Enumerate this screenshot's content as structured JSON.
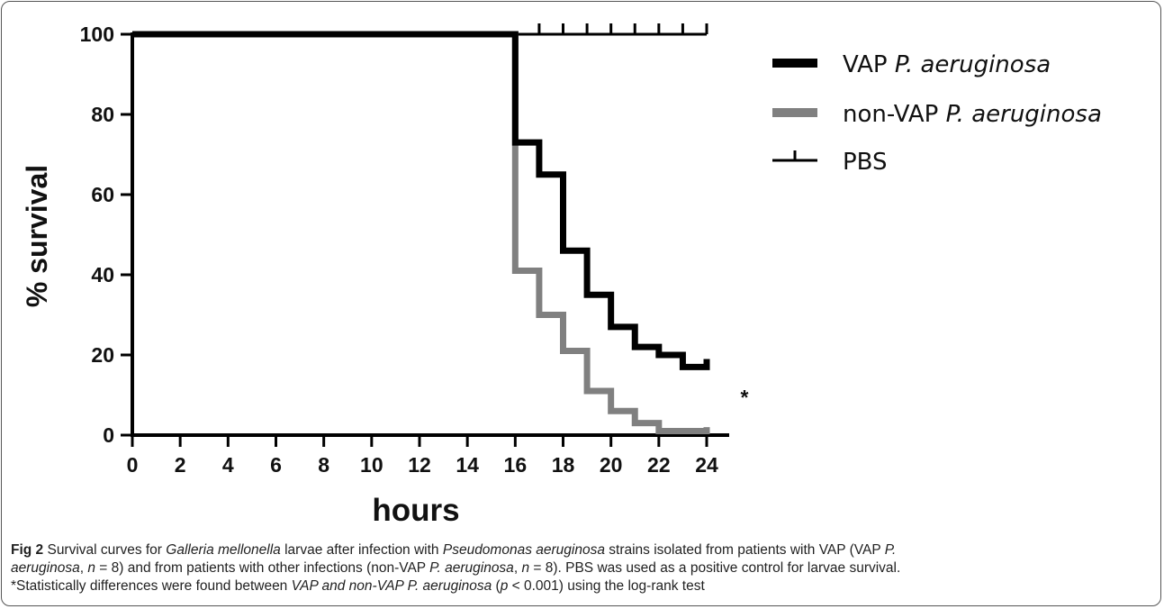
{
  "chart_data": {
    "type": "line",
    "step": true,
    "title": "",
    "xlabel": "hours",
    "ylabel": "% survival",
    "xlim": [
      0,
      24
    ],
    "ylim": [
      0,
      100
    ],
    "xticks": [
      "0",
      "2",
      "4",
      "6",
      "8",
      "10",
      "12",
      "14",
      "16",
      "18",
      "20",
      "22",
      "24"
    ],
    "yticks": [
      "0",
      "20",
      "40",
      "60",
      "80",
      "100"
    ],
    "legend_position": "top-right",
    "significance_marker": "*",
    "series": [
      {
        "name_prefix": "VAP ",
        "name_italic": "P. aeruginosa",
        "color": "#000000",
        "x": [
          0,
          16,
          17,
          18,
          19,
          20,
          21,
          22,
          23,
          24
        ],
        "y": [
          100,
          73,
          65,
          46,
          35,
          27,
          22,
          20,
          17,
          19
        ]
      },
      {
        "name_prefix": "non-VAP ",
        "name_italic": "P. aeruginosa",
        "color": "#808080",
        "x": [
          0,
          16,
          17,
          18,
          19,
          20,
          21,
          22,
          23,
          24
        ],
        "y": [
          100,
          41,
          30,
          21,
          11,
          6,
          3,
          1,
          1,
          2
        ]
      },
      {
        "name_prefix": "PBS",
        "name_italic": "",
        "color": "#000000",
        "censored_marks": true,
        "x": [
          0,
          24
        ],
        "y": [
          100,
          100
        ]
      }
    ]
  },
  "caption": {
    "fig_label": "Fig 2",
    "line1": [
      {
        "t": " Survival curves for "
      },
      {
        "t": "Galleria mellonella",
        "i": true
      },
      {
        "t": " larvae after infection with "
      },
      {
        "t": "Pseudomonas aeruginosa",
        "i": true
      },
      {
        "t": " strains isolated from patients with VAP (VAP "
      },
      {
        "t": "P.",
        "i": true
      }
    ],
    "line2": [
      {
        "t": "aeruginosa",
        "i": true
      },
      {
        "t": ", "
      },
      {
        "t": "n",
        "i": true
      },
      {
        "t": " = 8) and from patients with other infections (non-VAP "
      },
      {
        "t": "P. aeruginosa",
        "i": true
      },
      {
        "t": ", "
      },
      {
        "t": "n",
        "i": true
      },
      {
        "t": " = 8). PBS was used as a positive control for larvae survival."
      }
    ],
    "line3": [
      {
        "t": "*Statistically differences were found between "
      },
      {
        "t": "VAP and non-VAP P. aeruginosa",
        "i": true
      },
      {
        "t": " ("
      },
      {
        "t": "p",
        "i": true
      },
      {
        "t": " < 0.001) using the log-rank test"
      }
    ]
  }
}
